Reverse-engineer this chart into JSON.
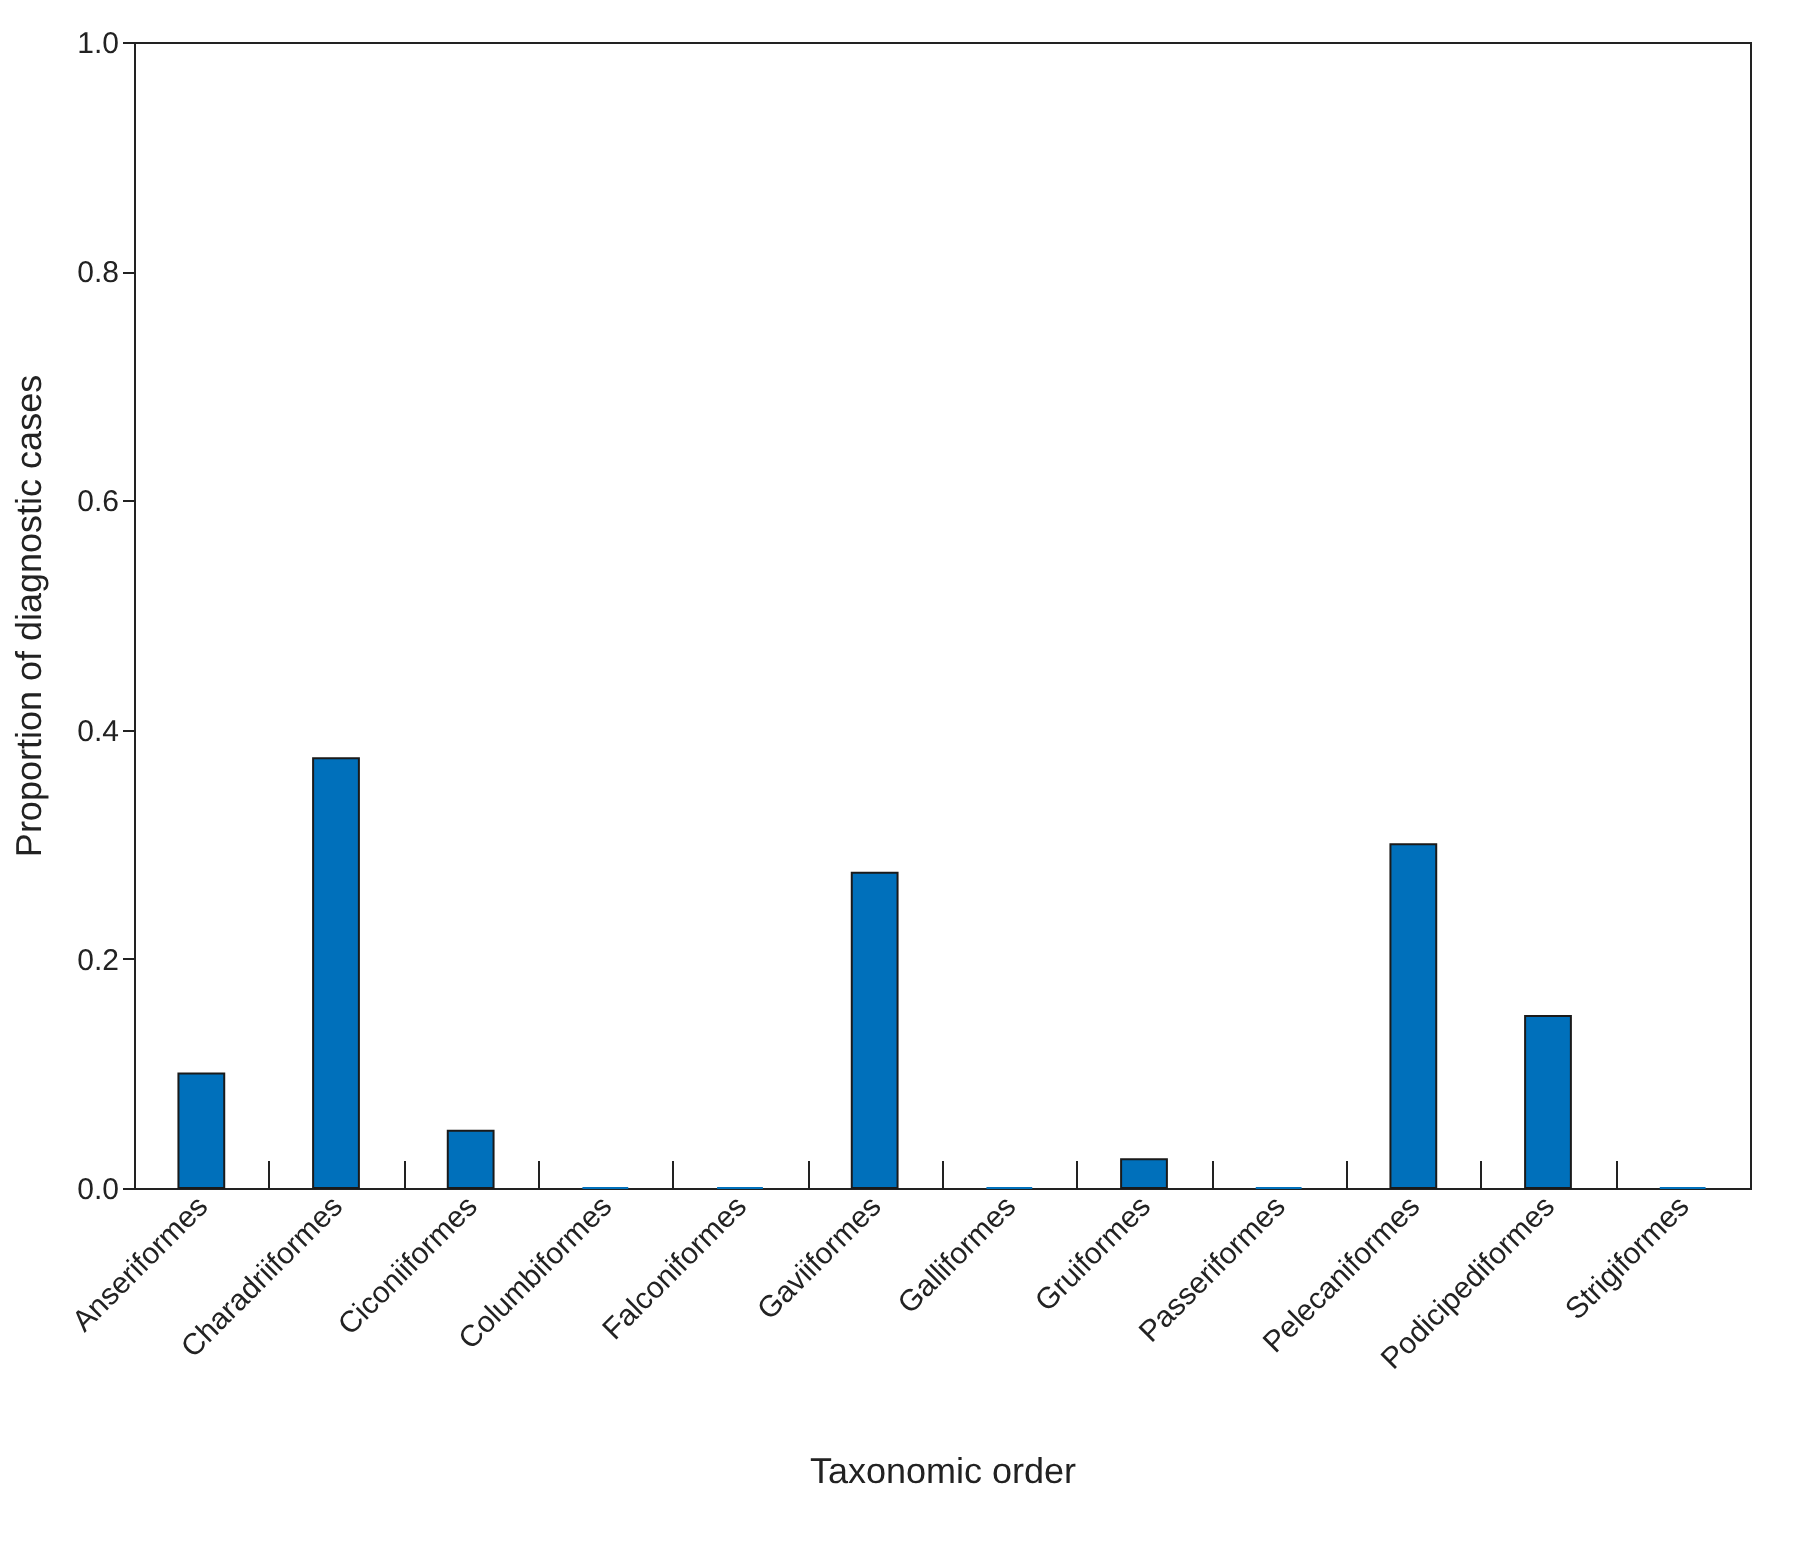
{
  "chart_data": {
    "type": "bar",
    "xlabel": "Taxonomic order",
    "ylabel": "Proportion of diagnostic cases",
    "categories": [
      "Anseriformes",
      "Charadriiformes",
      "Ciconiiformes",
      "Columbiformes",
      "Falconiformes",
      "Gaviiformes",
      "Galliformes",
      "Gruiformes",
      "Passeriformes",
      "Pelecaniformes",
      "Podicipediformes",
      "Strigiformes"
    ],
    "values": [
      0.1,
      0.375,
      0.05,
      0,
      0,
      0.275,
      0,
      0.025,
      0,
      0.3,
      0.15,
      0
    ],
    "color": "#0070bb",
    "ylim": [
      0,
      1
    ],
    "yticks": [
      {
        "value": 0,
        "label": "0.0"
      },
      {
        "value": 0.2,
        "label": "0.2"
      },
      {
        "value": 0.4,
        "label": "0.4"
      },
      {
        "value": 0.6,
        "label": "0.6"
      },
      {
        "value": 0.8,
        "label": "0.8"
      },
      {
        "value": 1,
        "label": "1.0"
      }
    ],
    "grid": false
  }
}
